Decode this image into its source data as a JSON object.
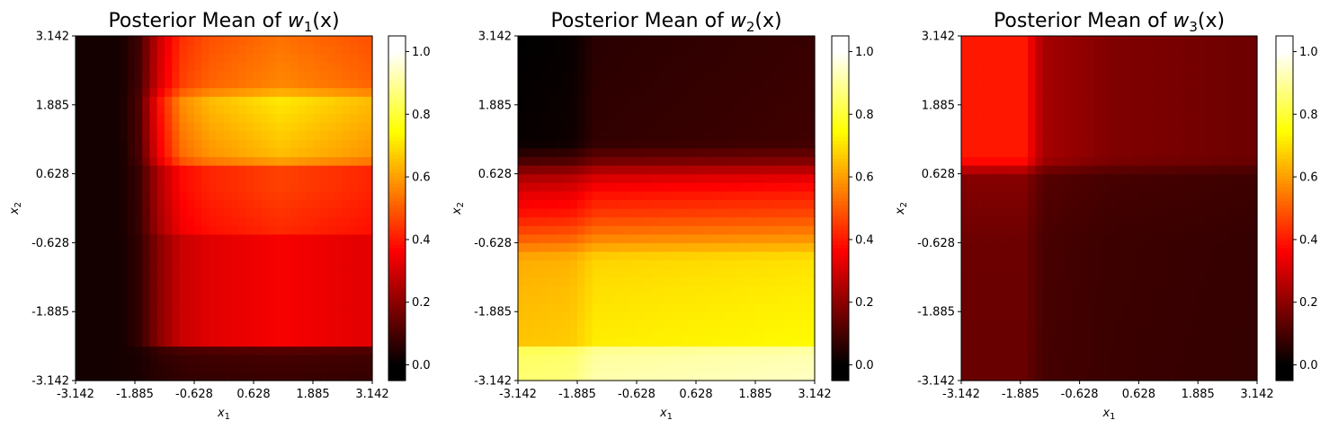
{
  "chart_data": [
    {
      "type": "heatmap",
      "title": "Posterior Mean of w1(x)",
      "title_parts": {
        "prefix": "Posterior Mean of ",
        "var": "w",
        "sub": "1",
        "suffix": "(x)"
      },
      "xlabel": {
        "var": "x",
        "sub": "1"
      },
      "ylabel": {
        "var": "x",
        "sub": "2"
      },
      "xlim": [
        -3.142,
        3.142
      ],
      "ylim": [
        -3.142,
        3.142
      ],
      "xticks": [
        "-3.142",
        "-1.885",
        "-0.628",
        "0.628",
        "1.885",
        "3.142"
      ],
      "yticks": [
        "-3.142",
        "-1.885",
        "-0.628",
        "0.628",
        "1.885",
        "3.142"
      ],
      "colormap": "hot",
      "colorbar": {
        "range": [
          -0.05,
          1.05
        ],
        "ticks": [
          "0.0",
          "0.2",
          "0.4",
          "0.6",
          "0.8",
          "1.0"
        ]
      },
      "x_profile": [
        {
          "x": -3.142,
          "v": 0.0
        },
        {
          "x": -2.2,
          "v": 0.0
        },
        {
          "x": -1.8,
          "v": 0.12
        },
        {
          "x": -1.4,
          "v": 0.5
        },
        {
          "x": -0.9,
          "v": 0.8
        },
        {
          "x": -0.3,
          "v": 0.9
        },
        {
          "x": 1.2,
          "v": 1.0
        },
        {
          "x": 2.2,
          "v": 0.95
        },
        {
          "x": 3.142,
          "v": 0.9
        }
      ],
      "y_profile": [
        {
          "y": -3.142,
          "v": 0.07
        },
        {
          "y": -2.6,
          "v": 0.1
        },
        {
          "y": -2.5,
          "v": 0.45
        },
        {
          "y": -0.5,
          "v": 0.45
        },
        {
          "y": -0.4,
          "v": 0.55
        },
        {
          "y": 0.4,
          "v": 0.6
        },
        {
          "y": 0.75,
          "v": 0.6
        },
        {
          "y": 0.9,
          "v": 0.85
        },
        {
          "y": 2.0,
          "v": 0.95
        },
        {
          "y": 2.2,
          "v": 0.75
        },
        {
          "y": 3.142,
          "v": 0.7
        }
      ],
      "combine": "product",
      "base": 0.03,
      "scale": 0.72
    },
    {
      "type": "heatmap",
      "title": "Posterior Mean of w2(x)",
      "title_parts": {
        "prefix": "Posterior Mean of ",
        "var": "w",
        "sub": "2",
        "suffix": "(x)"
      },
      "xlabel": {
        "var": "x",
        "sub": "1"
      },
      "ylabel": {
        "var": "x",
        "sub": "2"
      },
      "xlim": [
        -3.142,
        3.142
      ],
      "ylim": [
        -3.142,
        3.142
      ],
      "xticks": [
        "-3.142",
        "-1.885",
        "-0.628",
        "0.628",
        "1.885",
        "3.142"
      ],
      "yticks": [
        "-3.142",
        "-1.885",
        "-0.628",
        "0.628",
        "1.885",
        "3.142"
      ],
      "colormap": "hot",
      "colorbar": {
        "range": [
          -0.05,
          1.05
        ],
        "ticks": [
          "0.0",
          "0.2",
          "0.4",
          "0.6",
          "0.8",
          "1.0"
        ]
      },
      "x_profile": [
        {
          "x": -3.142,
          "v": 0.0
        },
        {
          "x": 3.142,
          "v": 0.0
        }
      ],
      "y_profile": [
        {
          "y": -3.142,
          "v": 0.92
        },
        {
          "y": -2.6,
          "v": 0.9
        },
        {
          "y": -2.45,
          "v": 0.72
        },
        {
          "y": -1.5,
          "v": 0.7
        },
        {
          "y": -0.9,
          "v": 0.68
        },
        {
          "y": -0.5,
          "v": 0.55
        },
        {
          "y": -0.1,
          "v": 0.45
        },
        {
          "y": 0.3,
          "v": 0.38
        },
        {
          "y": 0.6,
          "v": 0.3
        },
        {
          "y": 0.9,
          "v": 0.15
        },
        {
          "y": 1.2,
          "v": 0.07
        },
        {
          "y": 3.142,
          "v": 0.06
        }
      ],
      "combine": "add",
      "x_shift": [
        {
          "x": -3.142,
          "v": -0.06
        },
        {
          "x": -2.0,
          "v": -0.05
        },
        {
          "x": -1.5,
          "v": 0.0
        },
        {
          "x": 3.142,
          "v": 0.02
        }
      ]
    },
    {
      "type": "heatmap",
      "title": "Posterior Mean of w3(x)",
      "title_parts": {
        "prefix": "Posterior Mean of ",
        "var": "w",
        "sub": "3",
        "suffix": "(x)"
      },
      "xlabel": {
        "var": "x",
        "sub": "1"
      },
      "ylabel": {
        "var": "x",
        "sub": "2"
      },
      "xlim": [
        -3.142,
        3.142
      ],
      "ylim": [
        -3.142,
        3.142
      ],
      "xticks": [
        "-3.142",
        "-1.885",
        "-0.628",
        "0.628",
        "1.885",
        "3.142"
      ],
      "yticks": [
        "-3.142",
        "-1.885",
        "-0.628",
        "0.628",
        "1.885",
        "3.142"
      ],
      "colormap": "hot",
      "colorbar": {
        "range": [
          -0.05,
          1.05
        ],
        "ticks": [
          "0.0",
          "0.2",
          "0.4",
          "0.6",
          "0.8",
          "1.0"
        ]
      },
      "x_profile": [
        {
          "x": -3.142,
          "v": 1.0
        },
        {
          "x": -1.8,
          "v": 1.0
        },
        {
          "x": -1.4,
          "v": 0.55
        },
        {
          "x": 0.0,
          "v": 0.4
        },
        {
          "x": 3.142,
          "v": 0.32
        }
      ],
      "y_profile": [
        {
          "y": -3.142,
          "v": 0.3
        },
        {
          "y": -0.6,
          "v": 0.32
        },
        {
          "y": 0.6,
          "v": 0.42
        },
        {
          "y": 0.9,
          "v": 1.0
        },
        {
          "y": 3.142,
          "v": 1.0
        }
      ],
      "combine": "product",
      "base": 0.04,
      "scale": 0.36
    }
  ]
}
